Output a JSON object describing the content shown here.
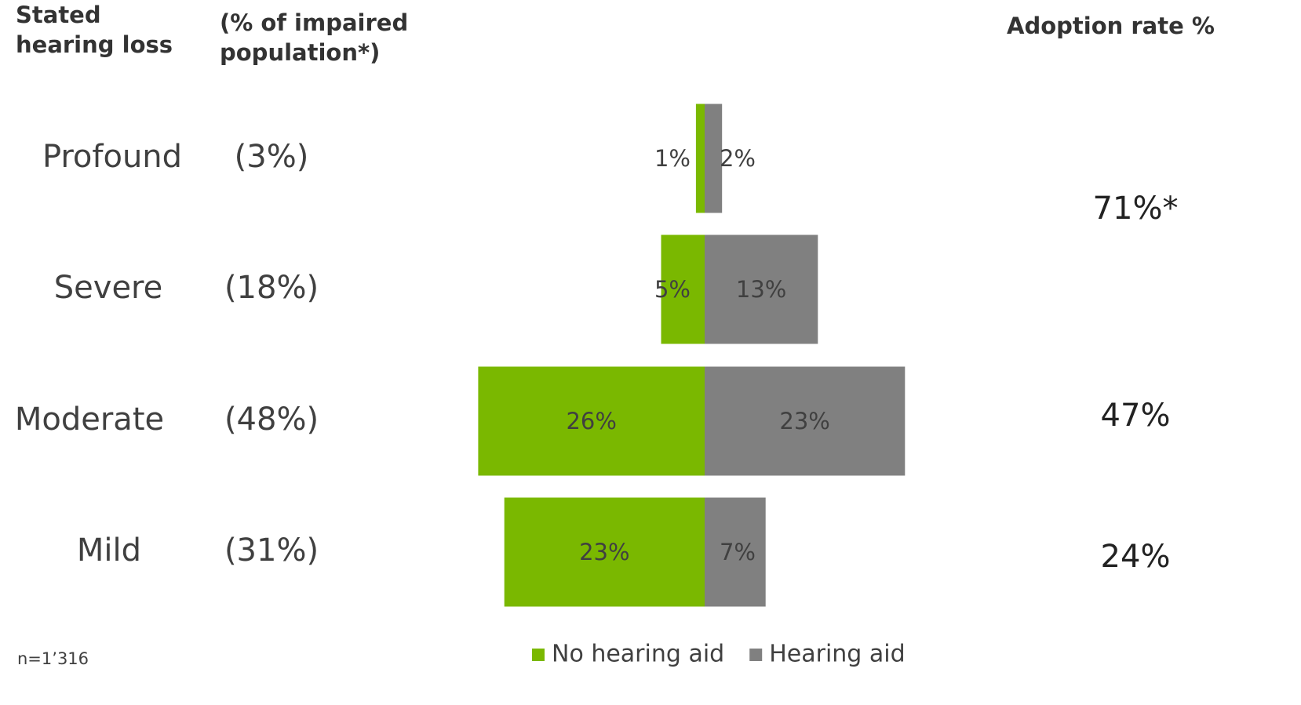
{
  "chart_data": {
    "type": "diverging_bar",
    "headers": {
      "category": [
        "Stated",
        "hearing loss"
      ],
      "population": [
        "(% of impaired",
        "population*)"
      ],
      "adoption": "Adoption rate %"
    },
    "categories": [
      "Profound",
      "Severe",
      "Moderate",
      "Mild"
    ],
    "population_labels": [
      "(3%)",
      "(18%)",
      "(48%)",
      "(31%)"
    ],
    "series": [
      {
        "name": "No hearing aid",
        "color": "#7ab800",
        "values": [
          1,
          5,
          26,
          23
        ],
        "value_labels": [
          "1%",
          "5%",
          "26%",
          "23%"
        ]
      },
      {
        "name": "Hearing aid",
        "color": "#808080",
        "values": [
          2,
          13,
          23,
          7
        ],
        "value_labels": [
          "2%",
          "13%",
          "23%",
          "7%"
        ]
      }
    ],
    "adoption_labels": [
      "71%*",
      "47%",
      "24%"
    ],
    "footnote": "n=1’316"
  }
}
